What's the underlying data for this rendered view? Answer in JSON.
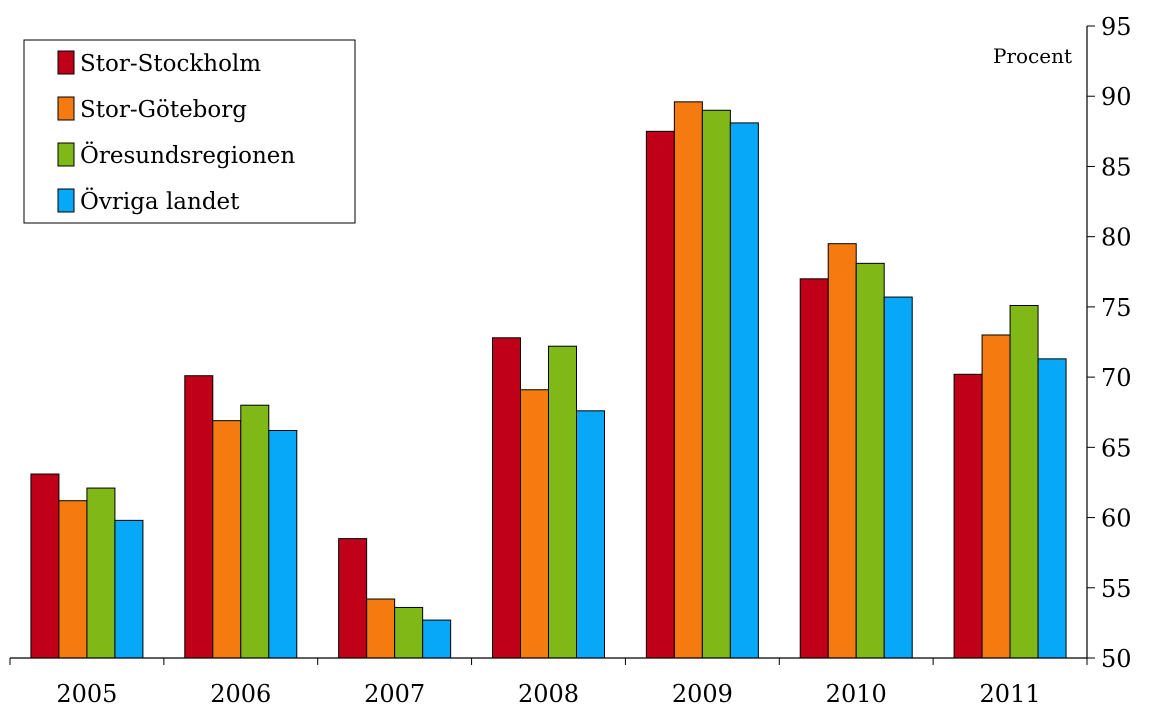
{
  "chart_data": {
    "type": "bar",
    "categories": [
      "2005",
      "2006",
      "2007",
      "2008",
      "2009",
      "2010",
      "2011"
    ],
    "series": [
      {
        "name": "Stor-Stockholm",
        "color": "#c00018",
        "values": [
          63.1,
          70.1,
          58.5,
          72.8,
          87.5,
          77.0,
          70.2
        ]
      },
      {
        "name": "Stor-Göteborg",
        "color": "#f57a10",
        "values": [
          61.2,
          66.9,
          54.2,
          69.1,
          89.6,
          79.5,
          73.0
        ]
      },
      {
        "name": "Öresundsregionen",
        "color": "#80b818",
        "values": [
          62.1,
          68.0,
          53.6,
          72.2,
          89.0,
          78.1,
          75.1
        ]
      },
      {
        "name": "Övriga landet",
        "color": "#08a8f8",
        "values": [
          59.8,
          66.2,
          52.7,
          67.6,
          88.1,
          75.7,
          71.3
        ]
      }
    ],
    "ylim": [
      50,
      95
    ],
    "yticks": [
      50,
      55,
      60,
      65,
      70,
      75,
      80,
      85,
      90,
      95
    ],
    "y_axis_side": "right",
    "unit_label": "Procent",
    "legend_position": "top-left",
    "grid": false
  }
}
